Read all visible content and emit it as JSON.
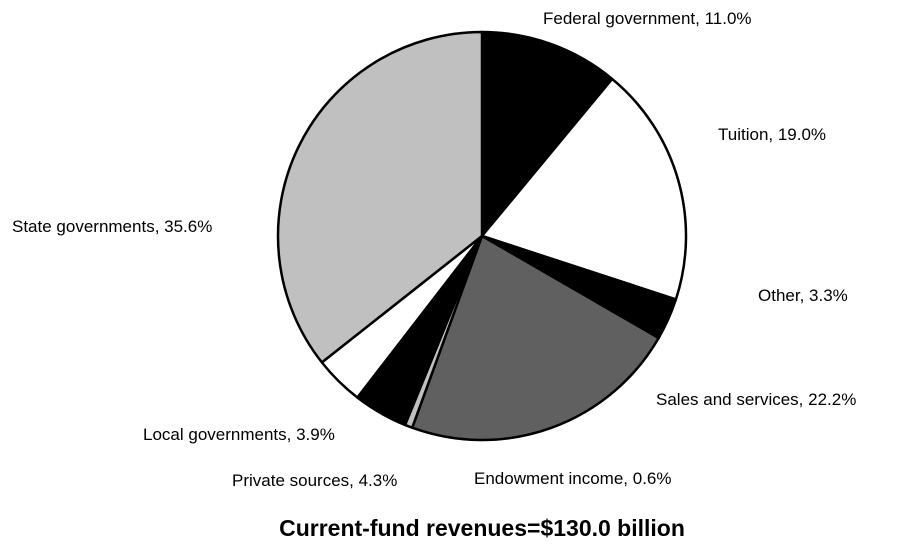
{
  "chart_data": {
    "type": "pie",
    "title": "Current-fund revenues=$130.0 billion",
    "slices": [
      {
        "label": "Federal government, 11.0%",
        "value": 11.0,
        "color": "#000000"
      },
      {
        "label": "Tuition, 19.0%",
        "value": 19.0,
        "color": "#ffffff"
      },
      {
        "label": "Other, 3.3%",
        "value": 3.3,
        "color": "#000000"
      },
      {
        "label": "Sales and services, 22.2%",
        "value": 22.2,
        "color": "#606060"
      },
      {
        "label": "Endowment income, 0.6%",
        "value": 0.6,
        "color": "#c0c0c0"
      },
      {
        "label": "Private sources, 4.3%",
        "value": 4.3,
        "color": "#000000"
      },
      {
        "label": "Local governments, 3.9%",
        "value": 3.9,
        "color": "#ffffff"
      },
      {
        "label": "State governments, 35.6%",
        "value": 35.6,
        "color": "#c0c0c0"
      }
    ],
    "start_direction": "top",
    "direction": "clockwise",
    "legend": "none"
  }
}
